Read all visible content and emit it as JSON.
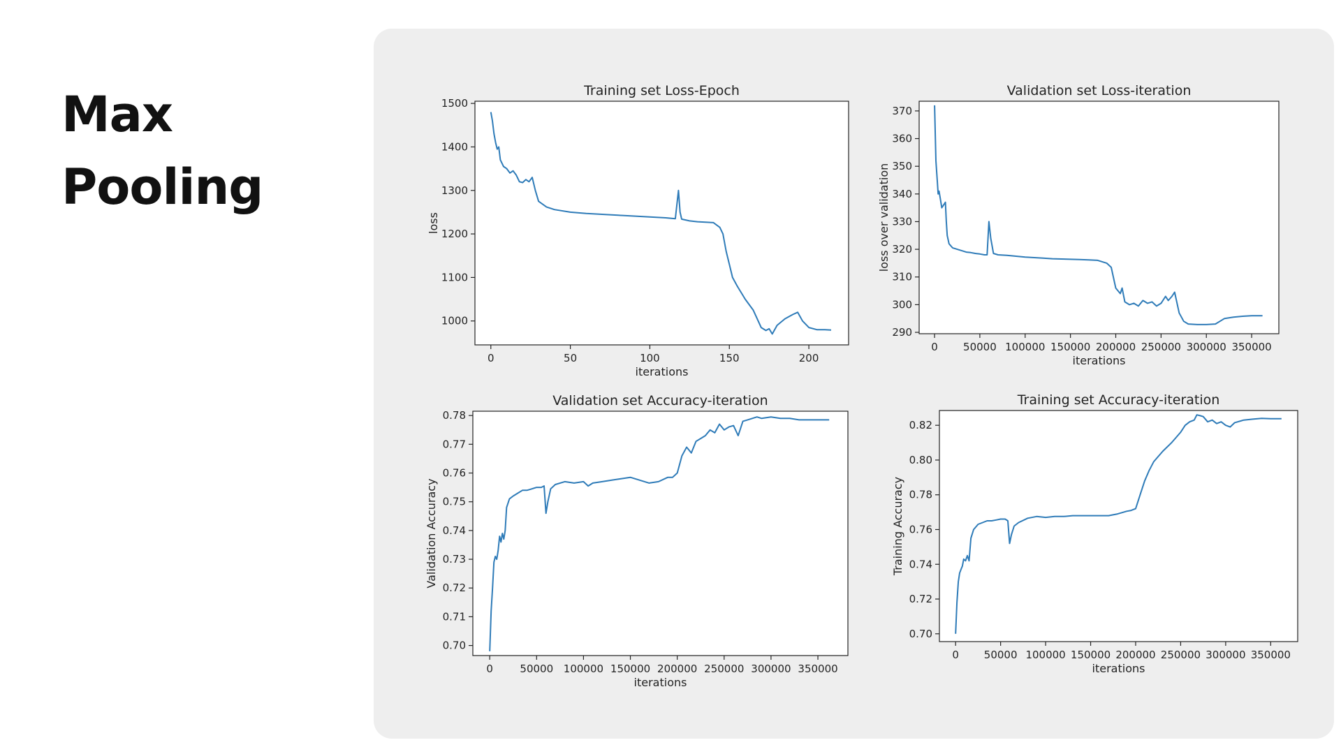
{
  "slide": {
    "title_line1": "Max",
    "title_line2": "Pooling"
  },
  "colors": {
    "line": "#2e7bb8",
    "plot_bg": "#ffffff",
    "panel_bg": "#eeeeee"
  },
  "chart_data": [
    {
      "type": "line",
      "title": "Training set Loss-Epoch",
      "xlabel": "iterations",
      "ylabel": "loss",
      "xlim": [
        -10,
        225
      ],
      "ylim": [
        945,
        1505
      ],
      "xticks": [
        0,
        50,
        100,
        150,
        200
      ],
      "yticks": [
        1000,
        1100,
        1200,
        1300,
        1400,
        1500
      ],
      "grid": false,
      "series": [
        {
          "x": [
            0,
            1,
            2,
            3,
            4,
            5,
            6,
            8,
            10,
            12,
            14,
            16,
            18,
            20,
            22,
            24,
            26,
            28,
            30,
            35,
            40,
            50,
            60,
            70,
            80,
            90,
            100,
            110,
            116,
            118,
            119,
            120,
            125,
            130,
            140,
            144,
            146,
            148,
            150,
            152,
            155,
            160,
            165,
            170,
            173,
            175,
            177,
            180,
            185,
            190,
            193,
            196,
            200,
            205,
            210,
            214
          ],
          "y": [
            1480,
            1460,
            1430,
            1410,
            1395,
            1400,
            1370,
            1355,
            1350,
            1340,
            1345,
            1335,
            1320,
            1318,
            1325,
            1320,
            1330,
            1300,
            1275,
            1262,
            1256,
            1250,
            1247,
            1245,
            1243,
            1241,
            1239,
            1237,
            1235,
            1300,
            1250,
            1234,
            1230,
            1228,
            1226,
            1215,
            1200,
            1160,
            1130,
            1100,
            1080,
            1050,
            1025,
            985,
            978,
            982,
            970,
            990,
            1005,
            1015,
            1020,
            1000,
            985,
            980,
            980,
            979
          ]
        }
      ]
    },
    {
      "type": "line",
      "title": "Validation set Loss-iteration",
      "xlabel": "iterations",
      "ylabel": "loss over validation",
      "xlim": [
        -17000,
        380000
      ],
      "ylim": [
        289.5,
        373.5
      ],
      "xticks": [
        0,
        50000,
        100000,
        150000,
        200000,
        250000,
        300000,
        350000
      ],
      "yticks": [
        290,
        300,
        310,
        320,
        330,
        340,
        350,
        360,
        370
      ],
      "grid": false,
      "series": [
        {
          "x": [
            0,
            1500,
            3000,
            4000,
            5000,
            6500,
            8000,
            10000,
            12000,
            13000,
            14000,
            16000,
            20000,
            25000,
            30000,
            35000,
            40000,
            45000,
            50000,
            55000,
            58000,
            60000,
            62000,
            65000,
            70000,
            80000,
            90000,
            100000,
            110000,
            120000,
            130000,
            140000,
            150000,
            160000,
            170000,
            180000,
            190000,
            195000,
            200000,
            205000,
            207000,
            210000,
            215000,
            220000,
            225000,
            230000,
            235000,
            240000,
            245000,
            250000,
            255000,
            258000,
            262000,
            265000,
            268000,
            270000,
            275000,
            280000,
            290000,
            300000,
            310000,
            320000,
            330000,
            340000,
            350000,
            362000
          ],
          "y": [
            372,
            352,
            345,
            340,
            341,
            338,
            335,
            336,
            337,
            330,
            325,
            322,
            320.5,
            320,
            319.5,
            319,
            318.8,
            318.5,
            318.3,
            318,
            318,
            330,
            324,
            318.5,
            318,
            317.8,
            317.5,
            317.2,
            317,
            316.8,
            316.6,
            316.5,
            316.4,
            316.3,
            316.2,
            316,
            315,
            313.5,
            306,
            304,
            306,
            301,
            300,
            300.5,
            299.5,
            301.5,
            300.5,
            301,
            299.5,
            300.5,
            303,
            301.5,
            303,
            304.5,
            300,
            297,
            294,
            293,
            292.8,
            292.8,
            293,
            295,
            295.5,
            295.8,
            296,
            296
          ]
        }
      ]
    },
    {
      "type": "line",
      "title": "Validation set Accuracy-iteration",
      "xlabel": "iterations",
      "ylabel": "Validation Accuracy",
      "xlim": [
        -18000,
        382000
      ],
      "ylim": [
        0.6965,
        0.7815
      ],
      "xticks": [
        0,
        50000,
        100000,
        150000,
        200000,
        250000,
        300000,
        350000
      ],
      "yticks": [
        0.7,
        0.71,
        0.72,
        0.73,
        0.74,
        0.75,
        0.76,
        0.77,
        0.78
      ],
      "grid": false,
      "series": [
        {
          "x": [
            0,
            1500,
            3000,
            4500,
            6000,
            7500,
            9000,
            10500,
            12000,
            13500,
            15000,
            16500,
            18000,
            21000,
            25000,
            30000,
            35000,
            40000,
            45000,
            50000,
            55000,
            58000,
            60000,
            62000,
            65000,
            70000,
            80000,
            90000,
            100000,
            105000,
            110000,
            120000,
            130000,
            140000,
            150000,
            160000,
            170000,
            180000,
            190000,
            195000,
            200000,
            205000,
            210000,
            215000,
            220000,
            225000,
            230000,
            235000,
            240000,
            245000,
            250000,
            255000,
            260000,
            265000,
            270000,
            275000,
            280000,
            285000,
            290000,
            300000,
            310000,
            320000,
            330000,
            340000,
            350000,
            362000
          ],
          "y": [
            0.698,
            0.712,
            0.72,
            0.729,
            0.731,
            0.73,
            0.733,
            0.738,
            0.736,
            0.739,
            0.737,
            0.74,
            0.748,
            0.751,
            0.752,
            0.753,
            0.754,
            0.754,
            0.7545,
            0.755,
            0.755,
            0.7555,
            0.746,
            0.75,
            0.7545,
            0.756,
            0.757,
            0.7565,
            0.757,
            0.7555,
            0.7565,
            0.757,
            0.7575,
            0.758,
            0.7585,
            0.7575,
            0.7565,
            0.757,
            0.7585,
            0.7585,
            0.76,
            0.766,
            0.769,
            0.767,
            0.771,
            0.772,
            0.773,
            0.775,
            0.774,
            0.777,
            0.775,
            0.776,
            0.7765,
            0.773,
            0.778,
            0.7785,
            0.779,
            0.7795,
            0.779,
            0.7795,
            0.779,
            0.779,
            0.7785,
            0.7785,
            0.7785,
            0.7785
          ]
        }
      ]
    },
    {
      "type": "line",
      "title": "Training set Accuracy-iteration",
      "xlabel": "iterations",
      "ylabel": "Training Accuracy",
      "xlim": [
        -18000,
        380000
      ],
      "ylim": [
        0.6955,
        0.8285
      ],
      "xticks": [
        0,
        50000,
        100000,
        150000,
        200000,
        250000,
        300000,
        350000
      ],
      "yticks": [
        0.7,
        0.72,
        0.74,
        0.76,
        0.78,
        0.8,
        0.82
      ],
      "grid": false,
      "series": [
        {
          "x": [
            0,
            1500,
            3000,
            4500,
            6000,
            7500,
            9000,
            11000,
            13000,
            15000,
            17000,
            20000,
            25000,
            30000,
            35000,
            40000,
            45000,
            50000,
            55000,
            58000,
            60000,
            62000,
            65000,
            70000,
            80000,
            90000,
            100000,
            110000,
            120000,
            130000,
            140000,
            150000,
            160000,
            170000,
            180000,
            190000,
            195000,
            200000,
            205000,
            210000,
            215000,
            220000,
            230000,
            240000,
            250000,
            255000,
            260000,
            265000,
            268000,
            272000,
            275000,
            280000,
            285000,
            290000,
            295000,
            300000,
            305000,
            310000,
            320000,
            330000,
            340000,
            350000,
            362000
          ],
          "y": [
            0.7,
            0.718,
            0.73,
            0.735,
            0.737,
            0.739,
            0.743,
            0.742,
            0.745,
            0.742,
            0.755,
            0.76,
            0.763,
            0.764,
            0.765,
            0.765,
            0.7655,
            0.766,
            0.766,
            0.765,
            0.752,
            0.757,
            0.762,
            0.764,
            0.7665,
            0.7675,
            0.767,
            0.7675,
            0.7675,
            0.768,
            0.768,
            0.768,
            0.768,
            0.768,
            0.769,
            0.7705,
            0.771,
            0.772,
            0.78,
            0.788,
            0.794,
            0.799,
            0.805,
            0.81,
            0.816,
            0.82,
            0.822,
            0.823,
            0.826,
            0.8255,
            0.825,
            0.822,
            0.823,
            0.821,
            0.822,
            0.82,
            0.819,
            0.8215,
            0.823,
            0.8235,
            0.824,
            0.8238,
            0.8238
          ]
        }
      ]
    }
  ]
}
